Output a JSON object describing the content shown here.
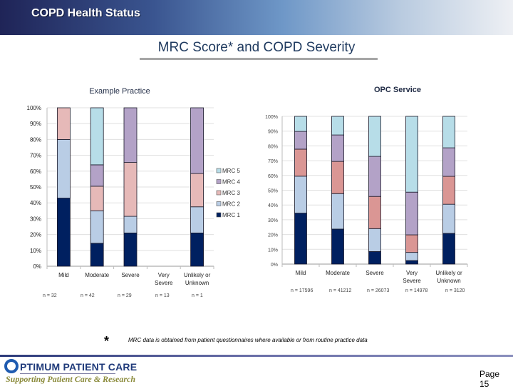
{
  "header": {
    "title": "COPD Health Status"
  },
  "page_title": "MRC Score* and COPD Severity",
  "footnote": {
    "marker": "*",
    "text": "MRC data is obtained from patient questionnaires where available or from routine practice data"
  },
  "footer": {
    "logo_name": "PTIMUM PATIENT CARE",
    "logo_tagline": "Supporting Patient Care & Research",
    "page_label": "Page",
    "page_number": "15"
  },
  "legend": {
    "items": [
      {
        "label": "MRC 5",
        "color": "#b7dde8"
      },
      {
        "label": "MRC 4",
        "color": "#b3a2c7"
      },
      {
        "label": "MRC 3",
        "color": "#e6b9b8"
      },
      {
        "label": "MRC 2",
        "color": "#b9cde5"
      },
      {
        "label": "MRC 1",
        "color": "#002060"
      }
    ]
  },
  "chart_data": [
    {
      "type": "bar",
      "stacked": true,
      "title": "Example Practice",
      "categories": [
        "Mild",
        "Moderate",
        "Severe",
        "Very Severe",
        "Unlikely or Unknown"
      ],
      "category_lines": [
        [
          "Mild"
        ],
        [
          "Moderate"
        ],
        [
          "Severe"
        ],
        [
          "Very",
          "Severe"
        ],
        [
          "Unlikely or",
          "Unknown"
        ]
      ],
      "n_labels": [
        "n = 32",
        "n = 42",
        "n = 29",
        "n = 13",
        "n = 1"
      ],
      "yticks": [
        "0%",
        "10%",
        "20%",
        "30%",
        "40%",
        "50%",
        "60%",
        "70%",
        "80%",
        "90%",
        "100%"
      ],
      "ylim": [
        0,
        100
      ],
      "grid": true,
      "legend_position": "right",
      "series": [
        {
          "name": "MRC 1",
          "color": "#002060",
          "values": [
            43,
            14.5,
            21,
            0,
            21
          ]
        },
        {
          "name": "MRC 2",
          "color": "#b9cde5",
          "values": [
            37,
            20.5,
            10.5,
            0,
            16.5
          ]
        },
        {
          "name": "MRC 3",
          "color": "#e6b9b8",
          "values": [
            20,
            15.5,
            34,
            0,
            21
          ]
        },
        {
          "name": "MRC 4",
          "color": "#b3a2c7",
          "values": [
            0,
            13.5,
            34.5,
            0,
            41.5
          ]
        },
        {
          "name": "MRC 5",
          "color": "#b7dde8",
          "values": [
            0,
            36,
            0,
            0,
            0
          ]
        }
      ]
    },
    {
      "type": "bar",
      "stacked": true,
      "title": "OPC Service",
      "categories": [
        "Mild",
        "Moderate",
        "Severe",
        "Very Severe",
        "Unlikely or Unknown"
      ],
      "category_lines": [
        [
          "Mild"
        ],
        [
          "Moderate"
        ],
        [
          "Severe"
        ],
        [
          "Very",
          "Severe"
        ],
        [
          "Unlikely or",
          "Unknown"
        ]
      ],
      "n_labels": [
        "n = 17596",
        "n = 41212",
        "n = 26073",
        "n = 14978",
        "n = 3120"
      ],
      "yticks": [
        "0%",
        "10%",
        "20%",
        "30%",
        "40%",
        "50%",
        "60%",
        "70%",
        "80%",
        "90%",
        "100%"
      ],
      "ylim": [
        0,
        100
      ],
      "grid": true,
      "series": [
        {
          "name": "MRC 1",
          "color": "#002060",
          "values": [
            34.5,
            23.7,
            8.5,
            2.4,
            20.8
          ]
        },
        {
          "name": "MRC 2",
          "color": "#b9cde5",
          "values": [
            25,
            24,
            15.5,
            5.5,
            19.7
          ]
        },
        {
          "name": "MRC 3",
          "color": "#da9694",
          "values": [
            18.3,
            21.8,
            21.8,
            11.9,
            18.9
          ]
        },
        {
          "name": "MRC 4",
          "color": "#b3a2c7",
          "values": [
            12,
            17.9,
            27.1,
            28.9,
            19.3
          ]
        },
        {
          "name": "MRC 5",
          "color": "#b7dde8",
          "values": [
            10.2,
            12.6,
            27.1,
            51.3,
            21.3
          ]
        }
      ]
    }
  ]
}
